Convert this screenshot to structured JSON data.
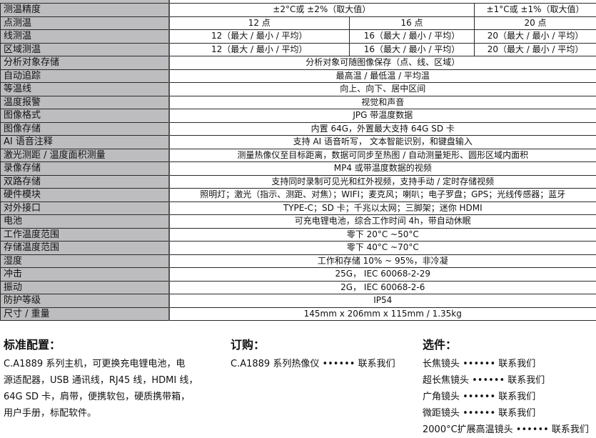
{
  "specs": [
    {
      "label": "测温精度",
      "values": [
        "±2°C或 ±2%（取大值）",
        "±1°C或 ±1%（取大值）"
      ],
      "layout": "2-1"
    },
    {
      "label": "点测温",
      "values": [
        "12 点",
        "16 点",
        "20 点"
      ]
    },
    {
      "label": "线测温",
      "values": [
        "12（最大 / 最小 / 平均）",
        "16（最大 / 最小 / 平均）",
        "20（最大 / 最小 / 平均）"
      ]
    },
    {
      "label": "区域测温",
      "values": [
        "12（最大 / 最小 / 平均）",
        "16（最大 / 最小 / 平均）",
        "20（最大 / 最小 / 平均）"
      ]
    },
    {
      "label": "分析对象存储",
      "values": [
        "分析对象可随图像保存（点、线、区域）"
      ]
    },
    {
      "label": "自动追踪",
      "values": [
        "最高温 / 最低温 / 平均温"
      ]
    },
    {
      "label": "等温线",
      "values": [
        "向上、向下、居中区间"
      ]
    },
    {
      "label": "温度报警",
      "values": [
        "视觉和声音"
      ]
    },
    {
      "label": "图像格式",
      "values": [
        "JPG 带温度数据"
      ]
    },
    {
      "label": "图像存储",
      "values": [
        "内置 64G，外置最大支持 64G SD 卡"
      ]
    },
    {
      "label": "AI 语音注释",
      "values": [
        "支持 AI 语音听写， 文本智能识别，和键盘输入"
      ]
    },
    {
      "label": "激光测距 / 温度面积测量",
      "values": [
        "测量热像仪至目标距离，数据可同步至热图 / 自动测量矩形、圆形区域内面积"
      ]
    },
    {
      "label": "录像存储",
      "values": [
        "MP4 或带温度数据的视频"
      ]
    },
    {
      "label": "双路存储",
      "values": [
        "支持同时录制可见光和红外视频，支持手动 / 定时存储视频"
      ]
    },
    {
      "label": "硬件模块",
      "values": [
        "照明灯；激光（指示、测距、对焦）；WIFI；麦克风；喇叭；电子罗盘；GPS；光线传感器；蓝牙"
      ]
    },
    {
      "label": "对外接口",
      "values": [
        "TYPE-C；SD 卡；千兆以太网；三脚架；迷你 HDMI"
      ]
    },
    {
      "label": "电池",
      "values": [
        "可充电锂电池，综合工作时间 4h，带自动休眠"
      ]
    },
    {
      "label": "工作温度范围",
      "values": [
        "零下 20°C ~50°C"
      ]
    },
    {
      "label": "存储温度范围",
      "values": [
        "零下 40°C ~70°C"
      ]
    },
    {
      "label": "湿度",
      "values": [
        "工作和存储 10% ~ 95%，非冷凝"
      ]
    },
    {
      "label": "冲击",
      "values": [
        "25G， IEC 60068-2-29"
      ]
    },
    {
      "label": "振动",
      "values": [
        "2G， IEC 60068-2-6"
      ]
    },
    {
      "label": "防护等级",
      "values": [
        "IP54"
      ]
    },
    {
      "label": "尺寸 / 重量",
      "values": [
        "145mm x 206mm x 115mm / 1.35kg"
      ]
    }
  ],
  "standard": {
    "title": "标准配置：",
    "lines": [
      "C.A1889 系列主机，可更换充电锂电池，电",
      "源适配器，USB 通讯线，RJ45 线，HDMI 线，",
      "64G SD 卡，肩带，便携软包，硬质携带箱，",
      "用户手册，标配软件。"
    ]
  },
  "order": {
    "title": "订购：",
    "lines": [
      "C.A1889 系列热像仪 •••••• 联系我们"
    ]
  },
  "options": {
    "title": "选件：",
    "lines": [
      "长焦镜头 •••••• 联系我们",
      "超长焦镜头 •••••• 联系我们",
      "广角镜头 •••••• 联系我们",
      "微距镜头 •••••• 联系我们",
      "2000°C扩展高温镜头 •••••• 联系我们"
    ]
  }
}
